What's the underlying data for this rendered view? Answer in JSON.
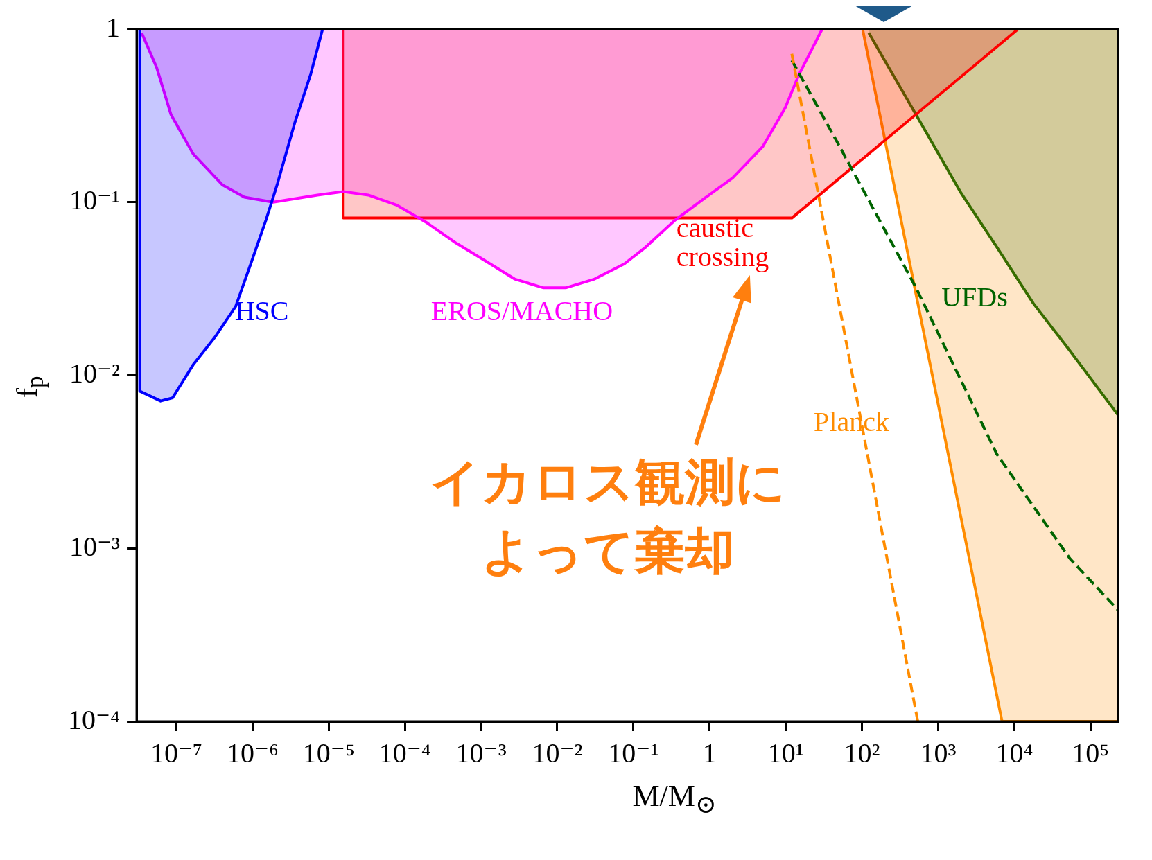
{
  "chart_data": {
    "type": "area",
    "xlabel": "M/M$_{⊙}$",
    "ylabel": "f$_{p}$",
    "log": "xy",
    "grid": false,
    "legend": false,
    "xlim": [
      3.3e-08,
      230000
    ],
    "ylim": [
      0.0001,
      1
    ],
    "xticks": [
      {
        "value": 1e-07,
        "label": "10⁻⁷"
      },
      {
        "value": 1e-06,
        "label": "10⁻⁶"
      },
      {
        "value": 1e-05,
        "label": "10⁻⁵"
      },
      {
        "value": 0.0001,
        "label": "10⁻⁴"
      },
      {
        "value": 0.001,
        "label": "10⁻³"
      },
      {
        "value": 0.01,
        "label": "10⁻²"
      },
      {
        "value": 0.1,
        "label": "10⁻¹"
      },
      1,
      {
        "value": 10,
        "label": "10¹"
      },
      {
        "value": 100,
        "label": "10²"
      },
      {
        "value": 1000,
        "label": "10³"
      },
      {
        "value": 10000,
        "label": "10⁴"
      },
      {
        "value": 100000,
        "label": "10⁵"
      }
    ],
    "yticks": [
      {
        "value": 0.0001,
        "label": "10⁻⁴"
      },
      {
        "value": 0.001,
        "label": "10⁻³"
      },
      {
        "value": 0.01,
        "label": "10⁻²"
      },
      {
        "value": 0.1,
        "label": "10⁻¹"
      },
      1
    ],
    "series": [
      {
        "name": "HSC",
        "color": "#0000ff",
        "x": [
          3.3e-08,
          3.3e-08,
          6.2e-08,
          8.9e-08,
          1.66e-07,
          3.2e-07,
          6e-07,
          9.8e-07,
          1.5e-06,
          2.1e-06,
          3.6e-06,
          5.8e-06,
          8.3e-06
        ],
        "values": [
          1,
          0.0081,
          0.0071,
          0.0074,
          0.0115,
          0.0166,
          0.025,
          0.046,
          0.079,
          0.126,
          0.29,
          0.55,
          1
        ]
      },
      {
        "name": "EROS/MACHO",
        "color": "#ff00ff",
        "x": [
          3.5e-08,
          5.5e-08,
          8.5e-08,
          1.66e-07,
          4e-07,
          7.8e-07,
          1.86e-06,
          7.1e-06,
          1.55e-05,
          3.3e-05,
          7.9e-05,
          0.000195,
          0.00047,
          0.00112,
          0.00275,
          0.0066,
          0.0129,
          0.031,
          0.076,
          0.145,
          0.355,
          0.85,
          2.0,
          5.0,
          9.8,
          15,
          30
        ],
        "values": [
          0.95,
          0.6,
          0.32,
          0.19,
          0.126,
          0.107,
          0.1,
          0.11,
          0.115,
          0.11,
          0.096,
          0.076,
          0.058,
          0.046,
          0.036,
          0.032,
          0.032,
          0.036,
          0.044,
          0.055,
          0.079,
          0.105,
          0.138,
          0.21,
          0.35,
          0.55,
          1
        ]
      },
      {
        "name": "caustic crossing",
        "color": "#ff0000",
        "x": [
          1.55e-05,
          1.55e-05,
          12,
          11200
        ],
        "values": [
          1,
          0.081,
          0.081,
          1
        ]
      },
      {
        "name": "Planck",
        "color": "#ff8c00",
        "x": [
          102,
          6900,
          230000,
          230000
        ],
        "values": [
          1,
          0.0001,
          0.0001,
          1
        ]
      },
      {
        "type": "line",
        "line_style": "dashed",
        "color": "#ff8c00",
        "x": [
          12,
          540
        ],
        "values": [
          0.72,
          0.0001
        ]
      },
      {
        "name": "UFDs",
        "color": "#006400",
        "x": [
          123,
          513,
          1950,
          5900,
          17800,
          54000,
          230000,
          230000
        ],
        "values": [
          0.95,
          0.32,
          0.115,
          0.055,
          0.026,
          0.0138,
          0.0059,
          1
        ]
      },
      {
        "type": "line",
        "line_style": "dashed",
        "color": "#006400",
        "x": [
          12,
          48,
          513,
          5900,
          54000,
          230000
        ],
        "values": [
          0.66,
          0.22,
          0.032,
          0.0035,
          0.00087,
          0.00044
        ]
      }
    ],
    "annotations": [
      "イカロス観測によって棄却"
    ]
  }
}
